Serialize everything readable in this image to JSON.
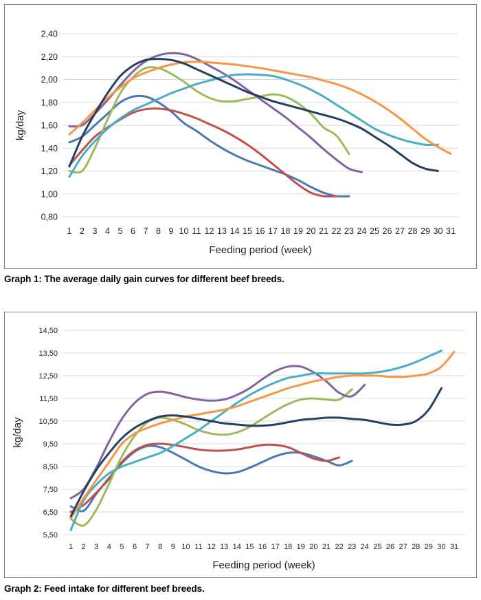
{
  "colors": {
    "blue": "#4a78b5",
    "red": "#c0504d",
    "green": "#9bbb59",
    "purple": "#8064a2",
    "teal": "#4bacc6",
    "orange": "#f79646",
    "navy": "#243f60",
    "grid": "#d9d9d9"
  },
  "chart_data": [
    {
      "type": "line",
      "title": "",
      "caption": "Graph 1: The average daily gain curves for different beef breeds.",
      "xlabel": "Feeding period (week)",
      "ylabel": "kg/day",
      "ylim": [
        0.8,
        2.4
      ],
      "y_ticks": [
        0.8,
        1.0,
        1.2,
        1.4,
        1.6,
        1.8,
        2.0,
        2.2,
        2.4
      ],
      "y_tick_labels": [
        "0,80",
        "1,00",
        "1,20",
        "1,40",
        "1,60",
        "1,80",
        "2,00",
        "2,20",
        "2,40"
      ],
      "x_ticks": [
        1,
        2,
        3,
        4,
        5,
        6,
        7,
        8,
        9,
        10,
        11,
        12,
        13,
        14,
        15,
        16,
        17,
        18,
        19,
        20,
        21,
        22,
        23,
        24,
        25,
        26,
        27,
        28,
        29,
        30,
        31
      ],
      "grid": true,
      "legend": "none",
      "series": [
        {
          "name": "blue",
          "color": "#4a78b5",
          "x": [
            1,
            2,
            3,
            4,
            5,
            6,
            7,
            8,
            9,
            10,
            11,
            12,
            13,
            14,
            15,
            16,
            17,
            18,
            19,
            20,
            21,
            22,
            23
          ],
          "values": [
            1.45,
            1.5,
            1.6,
            1.7,
            1.8,
            1.85,
            1.85,
            1.8,
            1.72,
            1.62,
            1.55,
            1.47,
            1.4,
            1.34,
            1.29,
            1.25,
            1.21,
            1.17,
            1.12,
            1.06,
            1.01,
            0.98,
            0.98
          ]
        },
        {
          "name": "red",
          "color": "#c0504d",
          "x": [
            1,
            2,
            3,
            4,
            5,
            6,
            7,
            8,
            9,
            10,
            11,
            12,
            13,
            14,
            15,
            16,
            17,
            18,
            19,
            20,
            21,
            22
          ],
          "values": [
            1.25,
            1.38,
            1.5,
            1.58,
            1.65,
            1.71,
            1.74,
            1.745,
            1.73,
            1.7,
            1.66,
            1.61,
            1.56,
            1.5,
            1.43,
            1.35,
            1.26,
            1.17,
            1.08,
            1.01,
            0.98,
            0.98
          ]
        },
        {
          "name": "green",
          "color": "#9bbb59",
          "x": [
            1,
            2,
            3,
            4,
            5,
            6,
            7,
            8,
            9,
            10,
            11,
            12,
            13,
            14,
            15,
            16,
            17,
            18,
            19,
            20,
            21,
            22,
            23
          ],
          "values": [
            1.2,
            1.2,
            1.4,
            1.65,
            1.88,
            2.02,
            2.1,
            2.1,
            2.05,
            1.98,
            1.9,
            1.84,
            1.81,
            1.81,
            1.83,
            1.85,
            1.87,
            1.85,
            1.79,
            1.7,
            1.58,
            1.51,
            1.35
          ]
        },
        {
          "name": "purple",
          "color": "#8064a2",
          "x": [
            1,
            2,
            3,
            4,
            5,
            6,
            7,
            8,
            9,
            10,
            11,
            12,
            13,
            14,
            15,
            16,
            17,
            18,
            19,
            20,
            21,
            22,
            23,
            24
          ],
          "values": [
            1.59,
            1.6,
            1.7,
            1.82,
            1.95,
            2.07,
            2.16,
            2.21,
            2.23,
            2.22,
            2.18,
            2.12,
            2.06,
            1.99,
            1.91,
            1.83,
            1.75,
            1.67,
            1.58,
            1.49,
            1.39,
            1.3,
            1.22,
            1.19
          ]
        },
        {
          "name": "teal",
          "color": "#4bacc6",
          "x": [
            1,
            2,
            3,
            4,
            5,
            6,
            7,
            8,
            9,
            10,
            11,
            12,
            13,
            14,
            15,
            16,
            17,
            18,
            19,
            20,
            21,
            22,
            23,
            24,
            25,
            26,
            27,
            28,
            29,
            30
          ],
          "values": [
            1.15,
            1.33,
            1.46,
            1.57,
            1.66,
            1.73,
            1.78,
            1.83,
            1.88,
            1.92,
            1.96,
            1.99,
            2.02,
            2.04,
            2.045,
            2.04,
            2.03,
            2.0,
            1.96,
            1.91,
            1.85,
            1.78,
            1.71,
            1.64,
            1.57,
            1.52,
            1.48,
            1.45,
            1.43,
            1.43
          ]
        },
        {
          "name": "orange",
          "color": "#f79646",
          "x": [
            1,
            2,
            3,
            4,
            5,
            6,
            7,
            8,
            9,
            10,
            11,
            12,
            13,
            14,
            15,
            16,
            17,
            18,
            19,
            20,
            21,
            22,
            23,
            24,
            25,
            26,
            27,
            28,
            29,
            30,
            31
          ],
          "values": [
            1.52,
            1.62,
            1.73,
            1.84,
            1.93,
            2.01,
            2.06,
            2.1,
            2.13,
            2.15,
            2.155,
            2.15,
            2.14,
            2.13,
            2.115,
            2.1,
            2.08,
            2.06,
            2.04,
            2.02,
            1.99,
            1.96,
            1.92,
            1.87,
            1.81,
            1.74,
            1.66,
            1.57,
            1.48,
            1.41,
            1.35
          ]
        },
        {
          "name": "navy",
          "color": "#243f60",
          "x": [
            1,
            2,
            3,
            4,
            5,
            6,
            7,
            8,
            9,
            10,
            11,
            12,
            13,
            14,
            15,
            16,
            17,
            18,
            19,
            20,
            21,
            22,
            23,
            24,
            25,
            26,
            27,
            28,
            29,
            30
          ],
          "values": [
            1.24,
            1.5,
            1.7,
            1.88,
            2.03,
            2.12,
            2.17,
            2.18,
            2.17,
            2.14,
            2.09,
            2.04,
            1.99,
            1.94,
            1.89,
            1.85,
            1.81,
            1.78,
            1.75,
            1.72,
            1.69,
            1.66,
            1.62,
            1.57,
            1.5,
            1.43,
            1.35,
            1.27,
            1.22,
            1.2
          ]
        }
      ]
    },
    {
      "type": "line",
      "title": "",
      "caption": "Graph 2: Feed intake for different beef breeds.",
      "xlabel": "Feeding period (week)",
      "ylabel": "kg/day",
      "ylim": [
        5.5,
        14.5
      ],
      "y_ticks": [
        5.5,
        6.5,
        7.5,
        8.5,
        9.5,
        10.5,
        11.5,
        12.5,
        13.5,
        14.5
      ],
      "y_tick_labels": [
        "5,50",
        "6,50",
        "7,50",
        "8,50",
        "9,50",
        "10,50",
        "11,50",
        "12,50",
        "13,50",
        "14,50"
      ],
      "x_ticks": [
        1,
        2,
        3,
        4,
        5,
        6,
        7,
        8,
        9,
        10,
        11,
        12,
        13,
        14,
        15,
        16,
        17,
        18,
        19,
        20,
        21,
        22,
        23,
        24,
        25,
        26,
        27,
        28,
        29,
        30,
        31
      ],
      "grid": true,
      "legend": "none",
      "series": [
        {
          "name": "blue",
          "color": "#4a78b5",
          "x": [
            1,
            2,
            3,
            4,
            5,
            6,
            7,
            8,
            9,
            10,
            11,
            12,
            13,
            14,
            15,
            16,
            17,
            18,
            19,
            20,
            21,
            22,
            23
          ],
          "values": [
            6.75,
            6.55,
            7.3,
            8.0,
            8.65,
            9.15,
            9.4,
            9.35,
            9.1,
            8.8,
            8.5,
            8.3,
            8.2,
            8.25,
            8.45,
            8.7,
            8.95,
            9.1,
            9.1,
            8.95,
            8.75,
            8.55,
            8.75
          ]
        },
        {
          "name": "red",
          "color": "#c0504d",
          "x": [
            1,
            2,
            3,
            4,
            5,
            6,
            7,
            8,
            9,
            10,
            11,
            12,
            13,
            14,
            15,
            16,
            17,
            18,
            19,
            20,
            21,
            22
          ],
          "values": [
            6.5,
            6.8,
            7.35,
            7.95,
            8.7,
            9.2,
            9.45,
            9.5,
            9.45,
            9.35,
            9.25,
            9.2,
            9.2,
            9.25,
            9.35,
            9.45,
            9.45,
            9.35,
            9.1,
            8.85,
            8.75,
            8.9
          ]
        },
        {
          "name": "green",
          "color": "#9bbb59",
          "x": [
            1,
            2,
            3,
            4,
            5,
            6,
            7,
            8,
            9,
            10,
            11,
            12,
            13,
            14,
            15,
            16,
            17,
            18,
            19,
            20,
            21,
            22,
            23
          ],
          "values": [
            6.2,
            5.9,
            6.6,
            7.75,
            8.95,
            9.85,
            10.45,
            10.65,
            10.55,
            10.35,
            10.1,
            9.95,
            9.9,
            10.0,
            10.25,
            10.6,
            10.95,
            11.25,
            11.45,
            11.5,
            11.45,
            11.45,
            11.9
          ]
        },
        {
          "name": "purple",
          "color": "#8064a2",
          "x": [
            1,
            2,
            3,
            4,
            5,
            6,
            7,
            8,
            9,
            10,
            11,
            12,
            13,
            14,
            15,
            16,
            17,
            18,
            19,
            20,
            21,
            22,
            23,
            24
          ],
          "values": [
            7.1,
            7.5,
            8.45,
            9.6,
            10.6,
            11.3,
            11.7,
            11.8,
            11.7,
            11.55,
            11.45,
            11.4,
            11.45,
            11.65,
            11.95,
            12.35,
            12.7,
            12.9,
            12.9,
            12.65,
            12.25,
            11.75,
            11.6,
            12.1
          ]
        },
        {
          "name": "teal",
          "color": "#4bacc6",
          "x": [
            1,
            2,
            3,
            4,
            5,
            6,
            7,
            8,
            9,
            10,
            11,
            12,
            13,
            14,
            15,
            16,
            17,
            18,
            19,
            20,
            21,
            22,
            23,
            24,
            25,
            26,
            27,
            28,
            29,
            30
          ],
          "values": [
            5.7,
            7.0,
            7.7,
            8.2,
            8.5,
            8.7,
            8.9,
            9.1,
            9.4,
            9.75,
            10.1,
            10.5,
            10.9,
            11.3,
            11.65,
            11.95,
            12.2,
            12.4,
            12.5,
            12.6,
            12.6,
            12.6,
            12.6,
            12.6,
            12.65,
            12.75,
            12.9,
            13.1,
            13.35,
            13.6
          ]
        },
        {
          "name": "orange",
          "color": "#f79646",
          "x": [
            1,
            2,
            3,
            4,
            5,
            6,
            7,
            8,
            9,
            10,
            11,
            12,
            13,
            14,
            15,
            16,
            17,
            18,
            19,
            20,
            21,
            22,
            23,
            24,
            25,
            26,
            27,
            28,
            29,
            30,
            31
          ],
          "values": [
            6.2,
            7.1,
            7.9,
            8.7,
            9.5,
            9.95,
            10.2,
            10.4,
            10.55,
            10.7,
            10.8,
            10.9,
            11.0,
            11.15,
            11.35,
            11.55,
            11.75,
            11.95,
            12.1,
            12.25,
            12.35,
            12.45,
            12.5,
            12.5,
            12.5,
            12.45,
            12.45,
            12.5,
            12.6,
            12.9,
            13.55
          ]
        },
        {
          "name": "navy",
          "color": "#243f60",
          "x": [
            1,
            2,
            3,
            4,
            5,
            6,
            7,
            8,
            9,
            10,
            11,
            12,
            13,
            14,
            15,
            16,
            17,
            18,
            19,
            20,
            21,
            22,
            23,
            24,
            25,
            26,
            27,
            28,
            29,
            30
          ],
          "values": [
            6.3,
            7.4,
            8.35,
            9.1,
            9.75,
            10.2,
            10.5,
            10.7,
            10.75,
            10.7,
            10.6,
            10.5,
            10.4,
            10.35,
            10.3,
            10.3,
            10.35,
            10.45,
            10.55,
            10.6,
            10.65,
            10.65,
            10.6,
            10.55,
            10.45,
            10.35,
            10.35,
            10.5,
            11.0,
            11.95
          ]
        }
      ]
    }
  ]
}
